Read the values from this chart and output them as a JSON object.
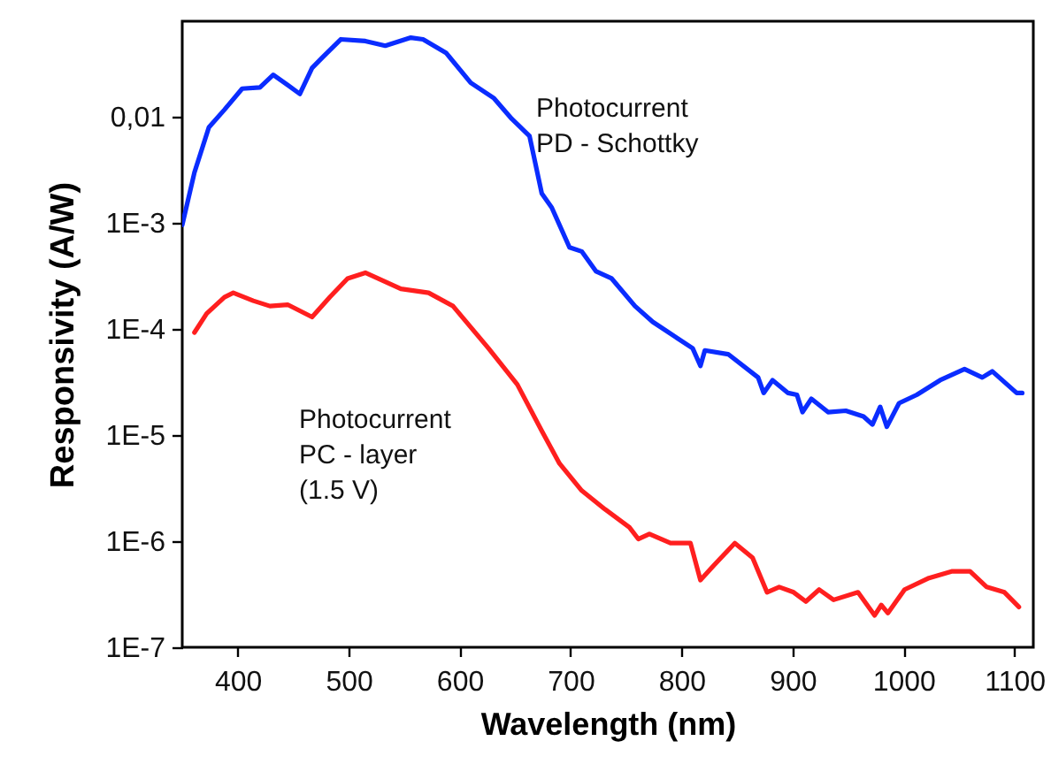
{
  "chart_data": {
    "type": "line",
    "xlabel": "Wavelength  (nm)",
    "ylabel": "Responsivity  (A/W)",
    "log": "y",
    "grid": false,
    "marker": "none",
    "line_style": "solid",
    "xlim": [
      350,
      1117
    ],
    "ylim": [
      1e-07,
      0.08
    ],
    "xticks": [
      400,
      500,
      600,
      700,
      800,
      900,
      1000,
      1100
    ],
    "yticks": [
      {
        "value": 1e-07,
        "label": "1E-7"
      },
      {
        "value": 1e-06,
        "label": "1E-6"
      },
      {
        "value": 1e-05,
        "label": "1E-5"
      },
      {
        "value": 0.0001,
        "label": "1E-4"
      },
      {
        "value": 0.001,
        "label": "1E-3"
      },
      {
        "value": 0.01,
        "label": "0,01"
      }
    ],
    "series": [
      {
        "name": "Photocurrent\nPD - Schottky",
        "color": "#0a2cff",
        "x": [
          350,
          361,
          374,
          388,
          404,
          420,
          432,
          445,
          456,
          467,
          477,
          493,
          515,
          533,
          556,
          567,
          588,
          610,
          631,
          647,
          663,
          674,
          683,
          699,
          710,
          723,
          737,
          758,
          774,
          794,
          810,
          817,
          821,
          842,
          869,
          874,
          882,
          896,
          904,
          909,
          917,
          932,
          948,
          964,
          972,
          979,
          985,
          996,
          1012,
          1033,
          1055,
          1071,
          1080,
          1102,
          1107
        ],
        "values": [
          0.00096,
          0.003,
          0.008,
          0.0117,
          0.0185,
          0.019,
          0.025,
          0.02,
          0.0165,
          0.029,
          0.037,
          0.054,
          0.052,
          0.047,
          0.056,
          0.054,
          0.04,
          0.021,
          0.015,
          0.0096,
          0.0066,
          0.0019,
          0.0014,
          0.00059,
          0.00054,
          0.00035,
          0.0003,
          0.000165,
          0.000117,
          8.5e-05,
          6.6e-05,
          4.5e-05,
          6.3e-05,
          5.8e-05,
          3.5e-05,
          2.5e-05,
          3.3e-05,
          2.5e-05,
          2.4e-05,
          1.65e-05,
          2.2e-05,
          1.65e-05,
          1.7e-05,
          1.5e-05,
          1.26e-05,
          1.85e-05,
          1.2e-05,
          2e-05,
          2.4e-05,
          3.3e-05,
          4.2e-05,
          3.5e-05,
          4e-05,
          2.5e-05,
          2.5e-05
        ]
      },
      {
        "name": "Photocurrent\nPC - layer\n(1.5 V)",
        "color": "#ff1f1f",
        "x": [
          361,
          372,
          388,
          396,
          414,
          429,
          445,
          467,
          483,
          499,
          515,
          547,
          572,
          594,
          626,
          652,
          674,
          690,
          710,
          731,
          753,
          761,
          771,
          790,
          808,
          817,
          829,
          848,
          864,
          877,
          888,
          901,
          912,
          924,
          937,
          959,
          974,
          980,
          986,
          1001,
          1023,
          1044,
          1060,
          1075,
          1091,
          1104
        ],
        "values": [
          9.3e-05,
          0.00014,
          0.0002,
          0.00022,
          0.000185,
          0.000165,
          0.00017,
          0.00013,
          0.0002,
          0.0003,
          0.00034,
          0.00024,
          0.00022,
          0.000165,
          6.6e-05,
          3e-05,
          1.1e-05,
          5.4e-06,
          3e-06,
          2e-06,
          1.35e-06,
          1.05e-06,
          1.17e-06,
          9.6e-07,
          9.6e-07,
          4.3e-07,
          5.9e-07,
          9.6e-07,
          7e-07,
          3.3e-07,
          3.7e-07,
          3.3e-07,
          2.7e-07,
          3.5e-07,
          2.8e-07,
          3.3e-07,
          2e-07,
          2.5e-07,
          2.1e-07,
          3.5e-07,
          4.5e-07,
          5.2e-07,
          5.2e-07,
          3.7e-07,
          3.3e-07,
          2.4e-07
        ]
      }
    ]
  }
}
